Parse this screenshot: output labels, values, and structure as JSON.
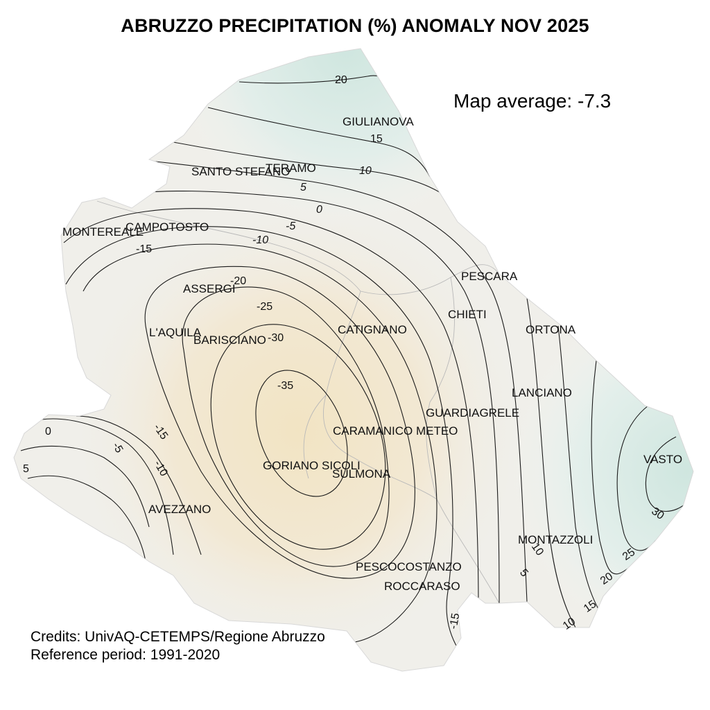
{
  "title": "ABRUZZO PRECIPITATION (%) ANOMALY NOV 2025",
  "map_average": "Map average: -7.3",
  "credits": {
    "line1": "Credits: UnivAQ-CETEMPS/Regione Abruzzo",
    "line2": "Reference period: 1991-2020"
  },
  "colors": {
    "positive": "#d7ece6",
    "neutral": "#f1f0ec",
    "negative": "#f3e6c9",
    "contour": "#1a1a1a",
    "province_border": "#b9b9b9"
  },
  "cities": [
    "GIULIANOVA",
    "TERAMO",
    "SANTO STEFANO",
    "MONTEREALE",
    "CAMPOTOSTO",
    "PESCARA",
    "ASSERGI",
    "CHIETI",
    "ORTONA",
    "L'AQUILA",
    "BARISCIANO",
    "CATIGNANO",
    "LANCIANO",
    "GUARDIAGRELE",
    "CARAMANICO METEO",
    "VASTO",
    "GORIANO SICOLI",
    "SULMONA",
    "AVEZZANO",
    "MONTAZZOLI",
    "PESCOCOSTANZO",
    "ROCCARASO"
  ],
  "contour_labels": [
    "20",
    "15",
    "10",
    "5",
    "0",
    "-5",
    "-10",
    "-15",
    "-20",
    "-25",
    "-30",
    "-35",
    "0",
    "-5",
    "-10",
    "-15",
    "5",
    "30",
    "25",
    "20",
    "15",
    "10",
    "10",
    "5",
    "-15"
  ]
}
